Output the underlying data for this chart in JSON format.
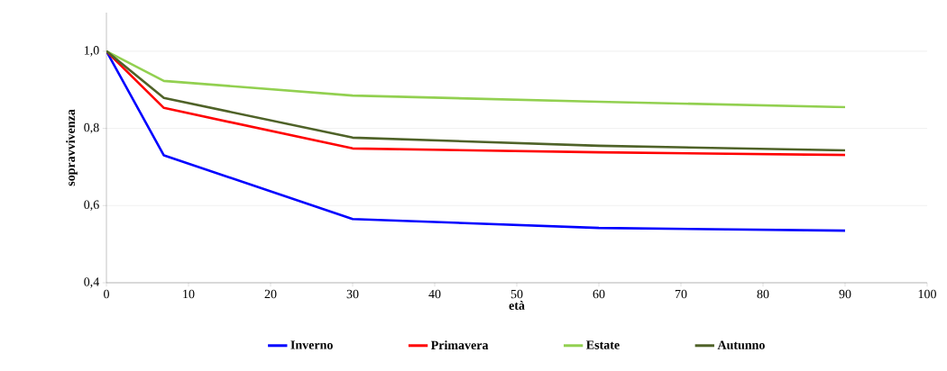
{
  "chart_data": {
    "type": "line",
    "xlabel": "età",
    "ylabel": "sopravvivenza",
    "xlim": [
      0,
      100
    ],
    "xticks": [
      0,
      10,
      20,
      30,
      40,
      50,
      60,
      70,
      80,
      90,
      100
    ],
    "ylim": [
      0.4,
      1.1
    ],
    "yticks": [
      {
        "value": 0.4,
        "label": "0,4"
      },
      {
        "value": 0.6,
        "label": "0,6"
      },
      {
        "value": 0.8,
        "label": "0,8"
      },
      {
        "value": 1.0,
        "label": "1,0"
      }
    ],
    "grid": "y",
    "legend": "bottom",
    "marker": "none",
    "line_style": "solid",
    "series": [
      {
        "name": "Inverno",
        "color": "#0000ff",
        "x": [
          0,
          7,
          30,
          60,
          90
        ],
        "values": [
          1.0,
          0.73,
          0.565,
          0.542,
          0.535
        ]
      },
      {
        "name": "Primavera",
        "color": "#ff0000",
        "x": [
          0,
          7,
          30,
          60,
          90
        ],
        "values": [
          1.0,
          0.853,
          0.748,
          0.738,
          0.731
        ]
      },
      {
        "name": "Estate",
        "color": "#92d050",
        "x": [
          0,
          7,
          30,
          60,
          90
        ],
        "values": [
          1.0,
          0.923,
          0.885,
          0.869,
          0.855
        ]
      },
      {
        "name": "Autunno",
        "color": "#4f6228",
        "x": [
          0,
          7,
          30,
          60,
          90
        ],
        "values": [
          1.0,
          0.879,
          0.776,
          0.755,
          0.743
        ]
      }
    ]
  }
}
